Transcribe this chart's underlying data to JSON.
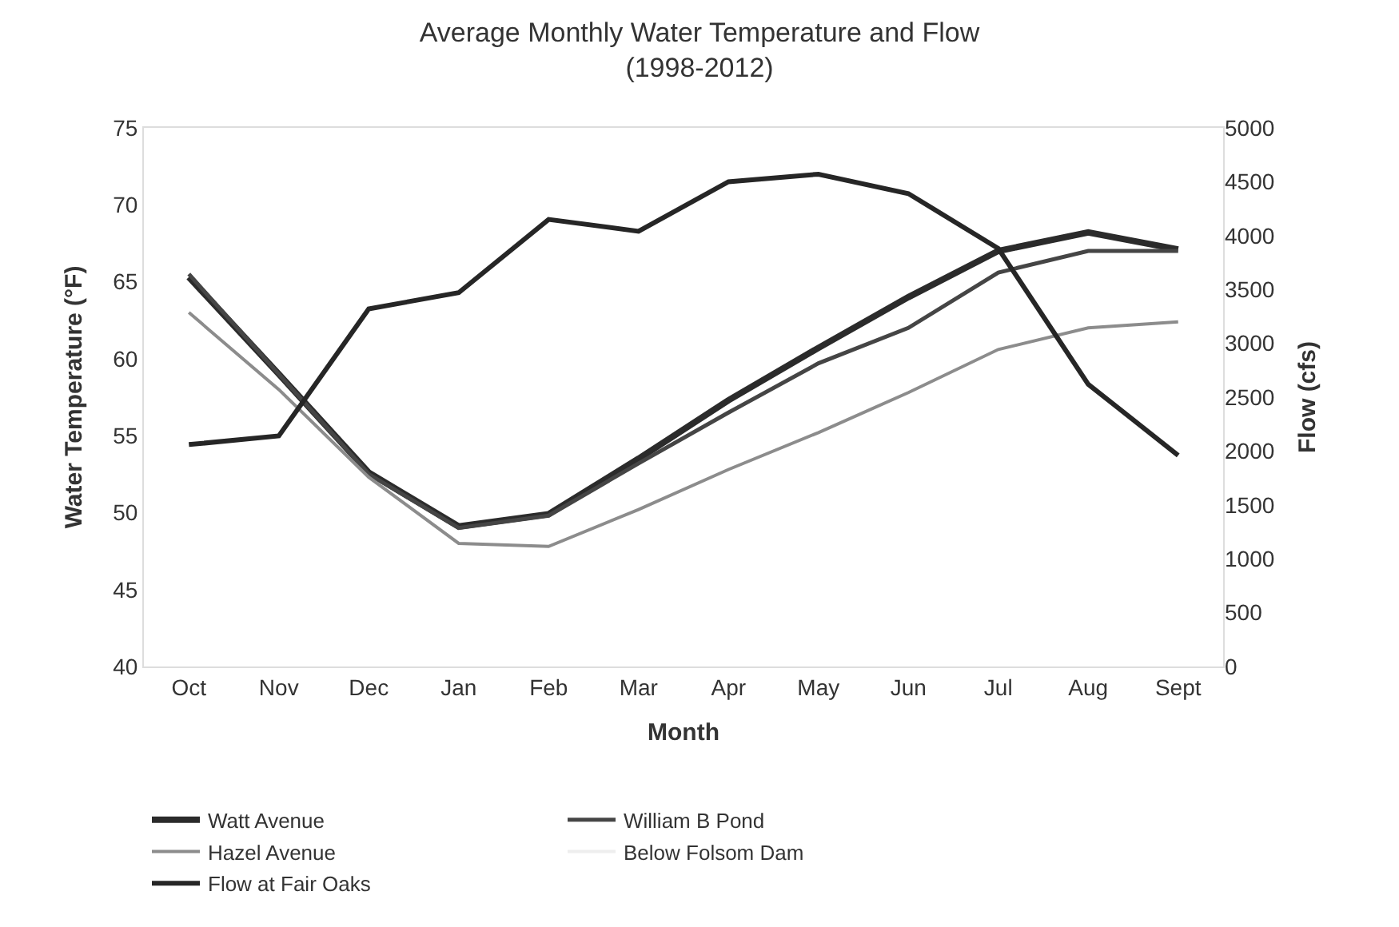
{
  "chart_data": {
    "type": "line",
    "title": "Average Monthly Water Temperature and Flow\n(1998-2012)",
    "xlabel": "Month",
    "ylabel": "Water Temperature (°F)",
    "y2label": "Flow (cfs)",
    "categories": [
      "Oct",
      "Nov",
      "Dec",
      "Jan",
      "Feb",
      "Mar",
      "Apr",
      "May",
      "Jun",
      "Jul",
      "Aug",
      "Sept"
    ],
    "series": [
      {
        "name": "Watt Avenue",
        "color": "#2b2b2b",
        "values": [
          65.3,
          59.0,
          52.6,
          49.1,
          49.9,
          53.5,
          57.3,
          60.7,
          64.0,
          67.0,
          68.2,
          67.1
        ]
      },
      {
        "name": "William B Pond",
        "color": "#454545",
        "values": [
          65.5,
          59.0,
          52.5,
          49.0,
          49.8,
          53.2,
          56.5,
          59.7,
          62.0,
          65.6,
          67.0,
          67.0
        ]
      },
      {
        "name": "Hazel Avenue",
        "color": "#8c8c8c",
        "values": [
          63.0,
          58.0,
          52.3,
          48.0,
          47.8,
          50.2,
          52.8,
          55.2,
          57.8,
          60.6,
          62.0,
          62.4
        ]
      },
      {
        "name": "Below Folsom Dam",
        "color": "#eeeeee",
        "values": [
          null,
          null,
          null,
          null,
          null,
          null,
          null,
          null,
          null,
          null,
          null,
          null
        ]
      },
      {
        "name": "Flow at Fair Oaks",
        "color": "#262626",
        "axis": "y2",
        "values": [
          2060,
          2140,
          3320,
          3470,
          4150,
          4040,
          4500,
          4570,
          4390,
          3880,
          2620,
          1960
        ]
      }
    ],
    "ylim": [
      40,
      75
    ],
    "yticks": [
      40,
      45,
      50,
      55,
      60,
      65,
      70,
      75
    ],
    "y2lim": [
      0,
      5000
    ],
    "y2ticks": [
      0,
      500,
      1000,
      1500,
      2000,
      2500,
      3000,
      3500,
      4000,
      4500,
      5000
    ],
    "legend": "bottom",
    "marker": "none",
    "line_style": "solid"
  }
}
